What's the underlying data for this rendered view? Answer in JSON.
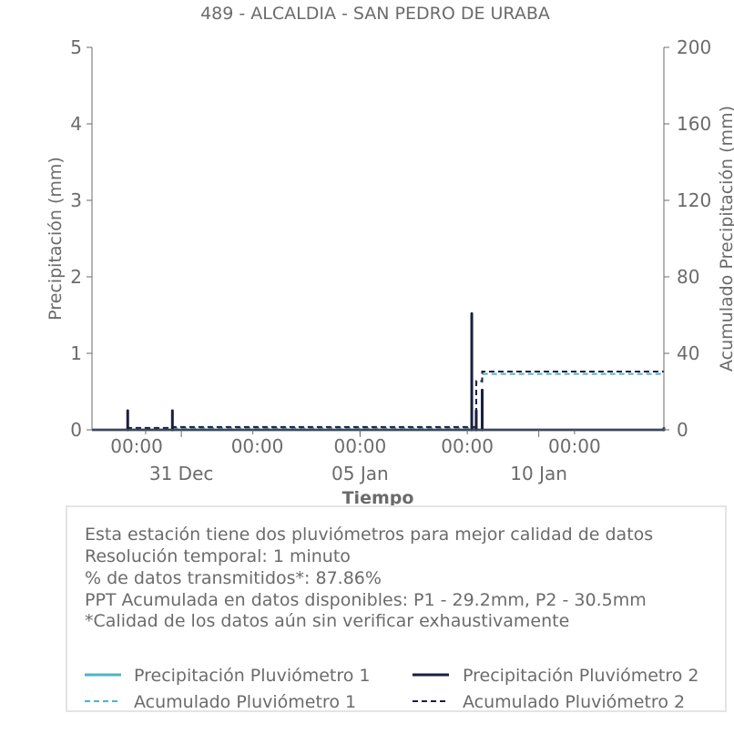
{
  "chart_data": {
    "type": "line",
    "title": "489 - ALCALDIA - SAN PEDRO DE URABA",
    "xlabel": "Tiempo",
    "ylabel": "Precipitación (mm)",
    "ylabel_right": "Acumulado Precipitación (mm)",
    "ylim": [
      0,
      5
    ],
    "ylim_right": [
      0,
      200
    ],
    "yticks": [
      "0",
      "1",
      "2",
      "3",
      "4",
      "5"
    ],
    "yticks_right": [
      "0",
      "40",
      "80",
      "120",
      "160",
      "200"
    ],
    "xlim": [
      "2024-12-28 12:00",
      "2025-01-13 12:00"
    ],
    "xticks_minor": [
      {
        "t": "2024-12-30 00:00",
        "label": "00:00"
      },
      {
        "t": "2025-01-02 00:00",
        "label": "00:00"
      },
      {
        "t": "2025-01-05 00:00",
        "label": "00:00"
      },
      {
        "t": "2025-01-08 00:00",
        "label": "00:00"
      },
      {
        "t": "2025-01-11 00:00",
        "label": "00:00"
      }
    ],
    "xticks_major": [
      {
        "t": "2024-12-31 00:00",
        "label": "31 Dec"
      },
      {
        "t": "2025-01-05 00:00",
        "label": "05 Jan"
      },
      {
        "t": "2025-01-10 00:00",
        "label": "10 Jan"
      }
    ],
    "legend_position": "bottom",
    "series": [
      {
        "name": "Precipitación Pluviómetro 1",
        "axis": "left",
        "style": "solid",
        "color": "#4eb3c7",
        "points": [
          [
            "2025-01-08 03:00",
            1.5
          ],
          [
            "2025-01-08 06:00",
            0.25
          ],
          [
            "2025-01-08 10:00",
            0.5
          ]
        ]
      },
      {
        "name": "Precipitación Pluviómetro 2",
        "axis": "left",
        "style": "solid",
        "color": "#1b1f3f",
        "points": [
          [
            "2024-12-29 12:00",
            0.25
          ],
          [
            "2024-12-30 18:00",
            0.25
          ],
          [
            "2025-01-08 03:00",
            1.52
          ],
          [
            "2025-01-08 06:00",
            0.25
          ],
          [
            "2025-01-08 10:00",
            0.52
          ],
          [
            "2025-01-13 12:00",
            0.02
          ]
        ]
      },
      {
        "name": "Acumulado Pluviómetro 1",
        "axis": "right",
        "style": "dashed",
        "color": "#4eb3c7",
        "steps": [
          [
            "2024-12-28 12:00",
            0
          ],
          [
            "2024-12-29 12:00",
            0.9
          ],
          [
            "2025-01-08 03:00",
            0.9
          ],
          [
            "2025-01-08 06:00",
            25.0
          ],
          [
            "2025-01-08 10:00",
            29.2
          ],
          [
            "2025-01-13 12:00",
            29.2
          ]
        ]
      },
      {
        "name": "Acumulado Pluviómetro 2",
        "axis": "right",
        "style": "dashed",
        "color": "#1b1f3f",
        "steps": [
          [
            "2024-12-28 12:00",
            0
          ],
          [
            "2024-12-29 12:00",
            1.0
          ],
          [
            "2024-12-30 18:00",
            1.5
          ],
          [
            "2025-01-08 03:00",
            1.5
          ],
          [
            "2025-01-08 06:00",
            25.5
          ],
          [
            "2025-01-08 10:00",
            30.5
          ],
          [
            "2025-01-13 12:00",
            30.5
          ]
        ]
      }
    ]
  },
  "info": {
    "lines": [
      "Esta estación tiene dos pluviómetros para mejor calidad de datos",
      "Resolución temporal: 1 minuto",
      "% de datos transmitidos*: 87.86%",
      "PPT Acumulada en datos disponibles: P1 - 29.2mm, P2 - 30.5mm",
      "*Calidad de los datos aún sin verificar exhaustivamente"
    ]
  },
  "legend": {
    "items": [
      "Precipitación Pluviómetro 1",
      "Precipitación Pluviómetro 2",
      "Acumulado Pluviómetro 1",
      "Acumulado Pluviómetro 2"
    ]
  }
}
